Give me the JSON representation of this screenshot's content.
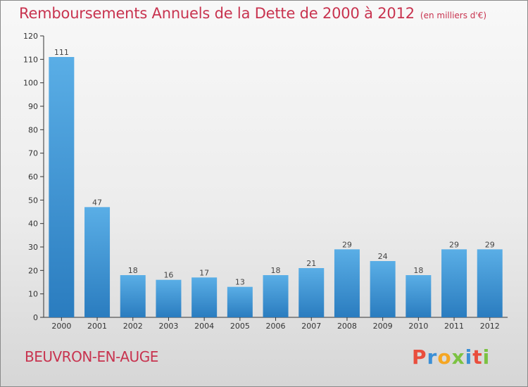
{
  "title": "Remboursements Annuels de la Dette de 2000 à 2012",
  "subtitle": "(en milliers d'€)",
  "commune": "BEUVRON-EN-AUGE",
  "brand": {
    "letters": [
      "P",
      "r",
      "o",
      "x",
      "i",
      "t",
      "i"
    ],
    "colors": [
      "#e94e3d",
      "#3b8fd6",
      "#f5a623",
      "#7cc242",
      "#3b8fd6",
      "#e94e3d",
      "#7cc242"
    ]
  },
  "chart_data": {
    "type": "bar",
    "title": "Remboursements Annuels de la Dette de 2000 à 2012",
    "subtitle": "(en milliers d'€)",
    "categories": [
      "2000",
      "2001",
      "2002",
      "2003",
      "2004",
      "2005",
      "2006",
      "2007",
      "2008",
      "2009",
      "2010",
      "2011",
      "2012"
    ],
    "values": [
      111,
      47,
      18,
      16,
      17,
      13,
      18,
      21,
      29,
      24,
      18,
      29,
      29
    ],
    "ylim": [
      0,
      120
    ],
    "yticks": [
      0,
      10,
      20,
      30,
      40,
      50,
      60,
      70,
      80,
      90,
      100,
      110,
      120
    ],
    "grid": false,
    "bar_color_top": "#5aaee6",
    "bar_color_bottom": "#2a7cbf",
    "xlabel": "",
    "ylabel": ""
  }
}
